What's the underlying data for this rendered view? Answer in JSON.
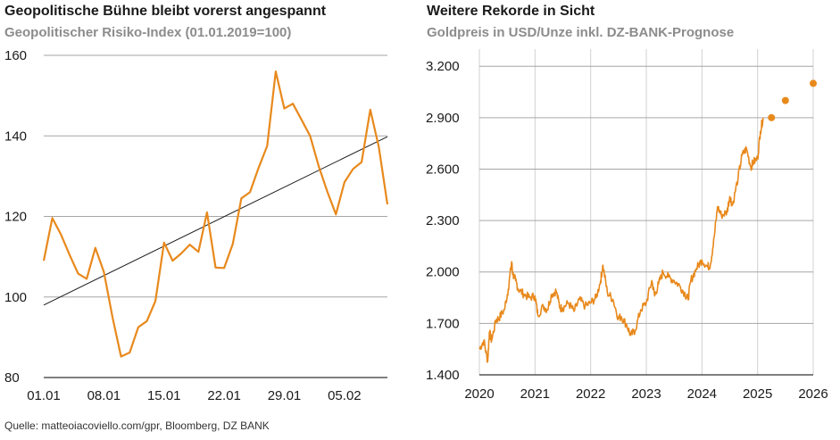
{
  "colors": {
    "series": "#e8891c",
    "trend": "#1a1a1a",
    "grid": "#a6a6a6"
  },
  "chart_data": [
    {
      "type": "line",
      "title": "Geopolitische Bühne bleibt vorerst angespannt",
      "subtitle": "Geopolitischer Risiko-Index (01.01.2019=100)",
      "x_tick_labels": [
        "01.01",
        "08.01",
        "15.01",
        "22.01",
        "29.01",
        "05.02"
      ],
      "ylim": [
        80,
        160
      ],
      "y_ticks": [
        80,
        100,
        120,
        140,
        160
      ],
      "grid": "horizontal",
      "series": [
        {
          "values": [
            109,
            119.6,
            115.5,
            110.5,
            105.8,
            104.5,
            112.2,
            106.2,
            95,
            85.2,
            86.2,
            92.5,
            94,
            99,
            113.5,
            109,
            110.8,
            113,
            111.2,
            121,
            107.3,
            107.2,
            113.2,
            124.5,
            126,
            132,
            137.5,
            156,
            146.8,
            148,
            144,
            140,
            132.5,
            126.2,
            120.5,
            128.5,
            131.8,
            133.5,
            146.5,
            137.2,
            123
          ]
        }
      ],
      "trendline": {
        "start": 98,
        "end": 139.8
      }
    },
    {
      "type": "line",
      "title": "Weitere Rekorde in Sicht",
      "subtitle": "Goldpreis in USD/Unze inkl. DZ-BANK-Prognose",
      "x_ticks": [
        2020,
        2021,
        2022,
        2023,
        2024,
        2025,
        2026
      ],
      "xlim": [
        2020,
        2026
      ],
      "ylim": [
        1400,
        3300
      ],
      "y_ticks": [
        1400,
        1700,
        2000,
        2300,
        2600,
        2900,
        3200
      ],
      "y_tick_labels": [
        "1.400",
        "1.700",
        "2.000",
        "2.300",
        "2.600",
        "2.900",
        "3.200"
      ],
      "grid": "both",
      "series": [
        {
          "x": [
            2020.0,
            2020.08,
            2020.15,
            2020.18,
            2020.22,
            2020.3,
            2020.35,
            2020.45,
            2020.52,
            2020.58,
            2020.6,
            2020.65,
            2020.7,
            2020.8,
            2020.9,
            2021.0,
            2021.05,
            2021.15,
            2021.22,
            2021.3,
            2021.38,
            2021.45,
            2021.5,
            2021.6,
            2021.7,
            2021.8,
            2021.9,
            2022.0,
            2022.1,
            2022.18,
            2022.22,
            2022.3,
            2022.4,
            2022.5,
            2022.55,
            2022.65,
            2022.72,
            2022.8,
            2022.9,
            2023.0,
            2023.1,
            2023.15,
            2023.22,
            2023.3,
            2023.4,
            2023.5,
            2023.6,
            2023.7,
            2023.75,
            2023.8,
            2023.9,
            2024.0,
            2024.1,
            2024.15,
            2024.22,
            2024.28,
            2024.35,
            2024.45,
            2024.5,
            2024.55,
            2024.65,
            2024.72,
            2024.8,
            2024.88,
            2024.92,
            2025.0,
            2025.05,
            2025.1
          ],
          "values": [
            1550,
            1600,
            1480,
            1650,
            1600,
            1720,
            1730,
            1780,
            1900,
            2060,
            1990,
            1950,
            1900,
            1870,
            1850,
            1860,
            1750,
            1800,
            1780,
            1870,
            1890,
            1790,
            1790,
            1820,
            1770,
            1840,
            1800,
            1820,
            1850,
            1950,
            2040,
            1880,
            1840,
            1730,
            1740,
            1690,
            1630,
            1660,
            1780,
            1820,
            1950,
            1860,
            1930,
            2000,
            1970,
            1950,
            1920,
            1870,
            1840,
            1950,
            2020,
            2070,
            2030,
            2040,
            2200,
            2380,
            2330,
            2350,
            2440,
            2390,
            2550,
            2680,
            2720,
            2610,
            2640,
            2660,
            2820,
            2900
          ]
        },
        {
          "name": "DZ-BANK-Prognose",
          "marker": "dot",
          "x": [
            2025.25,
            2025.5,
            2026.0
          ],
          "values": [
            2900,
            3000,
            3100
          ]
        }
      ]
    }
  ],
  "source": "Quelle: matteoiacoviello.com/gpr, Bloomberg, DZ BANK"
}
